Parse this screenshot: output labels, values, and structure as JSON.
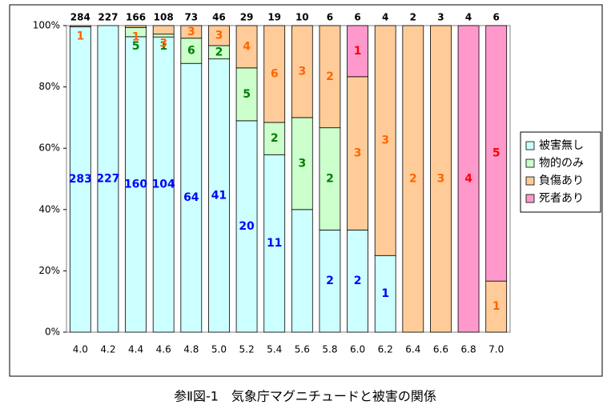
{
  "chart_data": {
    "type": "bar",
    "stacked": "percent",
    "title": "参Ⅱ図-1　気象庁マグニチュードと被害の関係",
    "categories": [
      "4.0",
      "4.2",
      "4.4",
      "4.6",
      "4.8",
      "5.0",
      "5.2",
      "5.4",
      "5.6",
      "5.8",
      "6.0",
      "6.2",
      "6.4",
      "6.6",
      "6.8",
      "7.0"
    ],
    "totals": [
      284,
      227,
      166,
      108,
      73,
      46,
      29,
      19,
      10,
      6,
      6,
      4,
      2,
      3,
      4,
      6
    ],
    "series": [
      {
        "name": "被害無し",
        "color": "#ccffff",
        "label_color": "#0000ff",
        "values": [
          283,
          227,
          160,
          104,
          64,
          41,
          20,
          11,
          4,
          2,
          2,
          1,
          0,
          0,
          0,
          0
        ],
        "value_labels": [
          "283",
          "227",
          "160",
          "104",
          "64",
          "41",
          "20",
          "11",
          null,
          "2",
          "2",
          "1",
          null,
          null,
          null,
          null
        ]
      },
      {
        "name": "物的のみ",
        "color": "#ccffcc",
        "label_color": "#008000",
        "values": [
          0,
          0,
          5,
          1,
          6,
          2,
          5,
          2,
          3,
          2,
          0,
          0,
          0,
          0,
          0,
          0
        ]
      },
      {
        "name": "負傷あり",
        "color": "#ffcc99",
        "label_color": "#ff6600",
        "values": [
          1,
          0,
          1,
          3,
          3,
          3,
          4,
          6,
          3,
          2,
          3,
          3,
          2,
          3,
          0,
          1
        ]
      },
      {
        "name": "死者あり",
        "color": "#ff99cc",
        "label_color": "#ff0000",
        "values": [
          0,
          0,
          0,
          0,
          0,
          0,
          0,
          0,
          0,
          0,
          1,
          0,
          0,
          0,
          4,
          5
        ]
      }
    ],
    "ylim": [
      0,
      100
    ],
    "yticks": [
      {
        "value": 0,
        "label": "0%"
      },
      {
        "value": 20,
        "label": "20%"
      },
      {
        "value": 40,
        "label": "40%"
      },
      {
        "value": 60,
        "label": "60%"
      },
      {
        "value": 80,
        "label": "80%"
      },
      {
        "value": 100,
        "label": "100%"
      }
    ],
    "legend": "right"
  }
}
